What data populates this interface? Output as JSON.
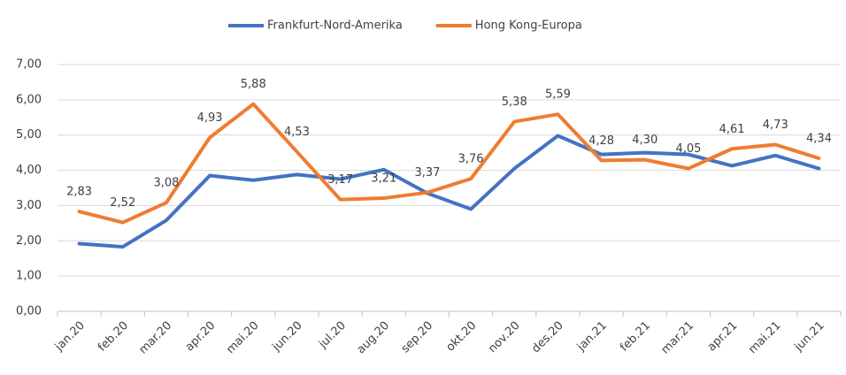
{
  "chart_data": {
    "type": "line",
    "categories": [
      "jan.20",
      "feb.20",
      "mar.20",
      "apr.20",
      "mai.20",
      "jun.20",
      "jul.20",
      "aug.20",
      "sep.20",
      "okt.20",
      "nov.20",
      "des.20",
      "jan.21",
      "feb.21",
      "mar.21",
      "apr.21",
      "mai.21",
      "jun.21"
    ],
    "series": [
      {
        "name": "Frankfurt-Nord-Amerika",
        "color": "#4472c4",
        "values": [
          1.92,
          1.83,
          2.58,
          3.85,
          3.72,
          3.88,
          3.75,
          4.02,
          3.35,
          2.9,
          4.05,
          4.98,
          4.45,
          4.5,
          4.45,
          4.13,
          4.42,
          4.05
        ]
      },
      {
        "name": "Hong Kong-Europa",
        "color": "#ed7d31",
        "values": [
          2.83,
          2.52,
          3.08,
          4.93,
          5.88,
          4.53,
          3.17,
          3.21,
          3.37,
          3.76,
          5.38,
          5.59,
          4.28,
          4.3,
          4.05,
          4.61,
          4.73,
          4.34
        ],
        "value_labels": [
          "2,83",
          "2,52",
          "3,08",
          "4,93",
          "5,88",
          "4,53",
          "3,17",
          "3,21",
          "3,37",
          "3,76",
          "5,38",
          "5,59",
          "4,28",
          "4,30",
          "4,05",
          "4,61",
          "4,73",
          "4,34"
        ]
      }
    ],
    "ylim": [
      0,
      7
    ],
    "yticks": [
      {
        "value": 0,
        "label": "0,00"
      },
      {
        "value": 1,
        "label": "1,00"
      },
      {
        "value": 2,
        "label": "2,00"
      },
      {
        "value": 3,
        "label": "3,00"
      },
      {
        "value": 4,
        "label": "4,00"
      },
      {
        "value": 5,
        "label": "5,00"
      },
      {
        "value": 6,
        "label": "6,00"
      },
      {
        "value": 7,
        "label": "7,00"
      }
    ],
    "grid": true,
    "legend": "top"
  }
}
